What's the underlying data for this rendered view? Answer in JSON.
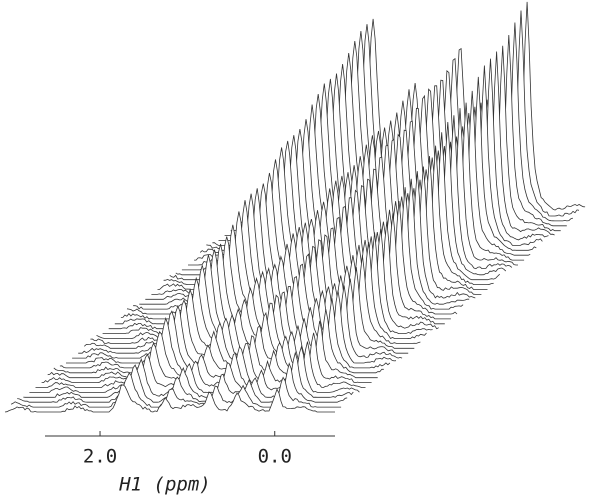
{
  "chart_data": {
    "type": "stacked-spectra",
    "xlabel": "H1 (ppm)",
    "xlim": [
      2.63,
      -0.69
    ],
    "xticks": [
      {
        "value": 2,
        "label": "2.0"
      },
      {
        "value": 0,
        "label": "0.0"
      }
    ]
  }
}
